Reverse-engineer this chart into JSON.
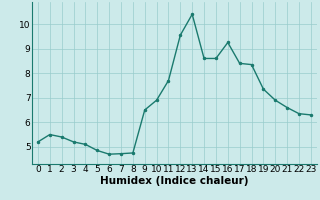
{
  "x": [
    0,
    1,
    2,
    3,
    4,
    5,
    6,
    7,
    8,
    9,
    10,
    11,
    12,
    13,
    14,
    15,
    16,
    17,
    18,
    19,
    20,
    21,
    22,
    23
  ],
  "y": [
    5.2,
    5.5,
    5.4,
    5.2,
    5.1,
    4.85,
    4.7,
    4.72,
    4.75,
    6.5,
    6.9,
    7.7,
    9.55,
    10.4,
    8.6,
    8.6,
    9.25,
    8.4,
    8.35,
    7.35,
    6.9,
    6.6,
    6.35,
    6.3
  ],
  "xlabel": "Humidex (Indice chaleur)",
  "ylabel": "",
  "title": "",
  "xlim": [
    -0.5,
    23.5
  ],
  "ylim": [
    4.3,
    10.9
  ],
  "yticks": [
    5,
    6,
    7,
    8,
    9,
    10
  ],
  "xticks": [
    0,
    1,
    2,
    3,
    4,
    5,
    6,
    7,
    8,
    9,
    10,
    11,
    12,
    13,
    14,
    15,
    16,
    17,
    18,
    19,
    20,
    21,
    22,
    23
  ],
  "line_color": "#1a7a6e",
  "marker_color": "#1a7a6e",
  "bg_color": "#cceaea",
  "grid_color": "#99cccc",
  "xlabel_fontsize": 7.5,
  "tick_fontsize": 6.5,
  "line_width": 1.0,
  "marker_size": 3.0
}
